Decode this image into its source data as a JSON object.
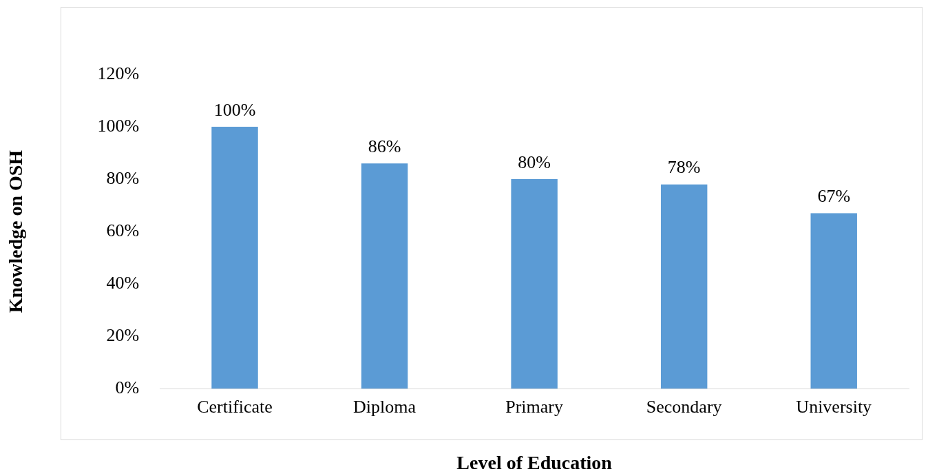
{
  "chart_data": {
    "type": "bar",
    "xlabel": "Level of Education",
    "ylabel": "Knowledge on OSH",
    "categories": [
      "Certificate",
      "Diploma",
      "Primary",
      "Secondary",
      "University"
    ],
    "values": [
      100,
      86,
      80,
      78,
      67
    ],
    "value_labels": [
      "100%",
      "86%",
      "80%",
      "78%",
      "67%"
    ],
    "color": "#5b9bd5",
    "ylim": [
      0,
      120
    ],
    "yticks": [
      {
        "value": 0,
        "label": "0%"
      },
      {
        "value": 20,
        "label": "20%"
      },
      {
        "value": 40,
        "label": "40%"
      },
      {
        "value": 60,
        "label": "60%"
      },
      {
        "value": 80,
        "label": "80%"
      },
      {
        "value": 100,
        "label": "100%"
      },
      {
        "value": 120,
        "label": "120%"
      }
    ]
  }
}
